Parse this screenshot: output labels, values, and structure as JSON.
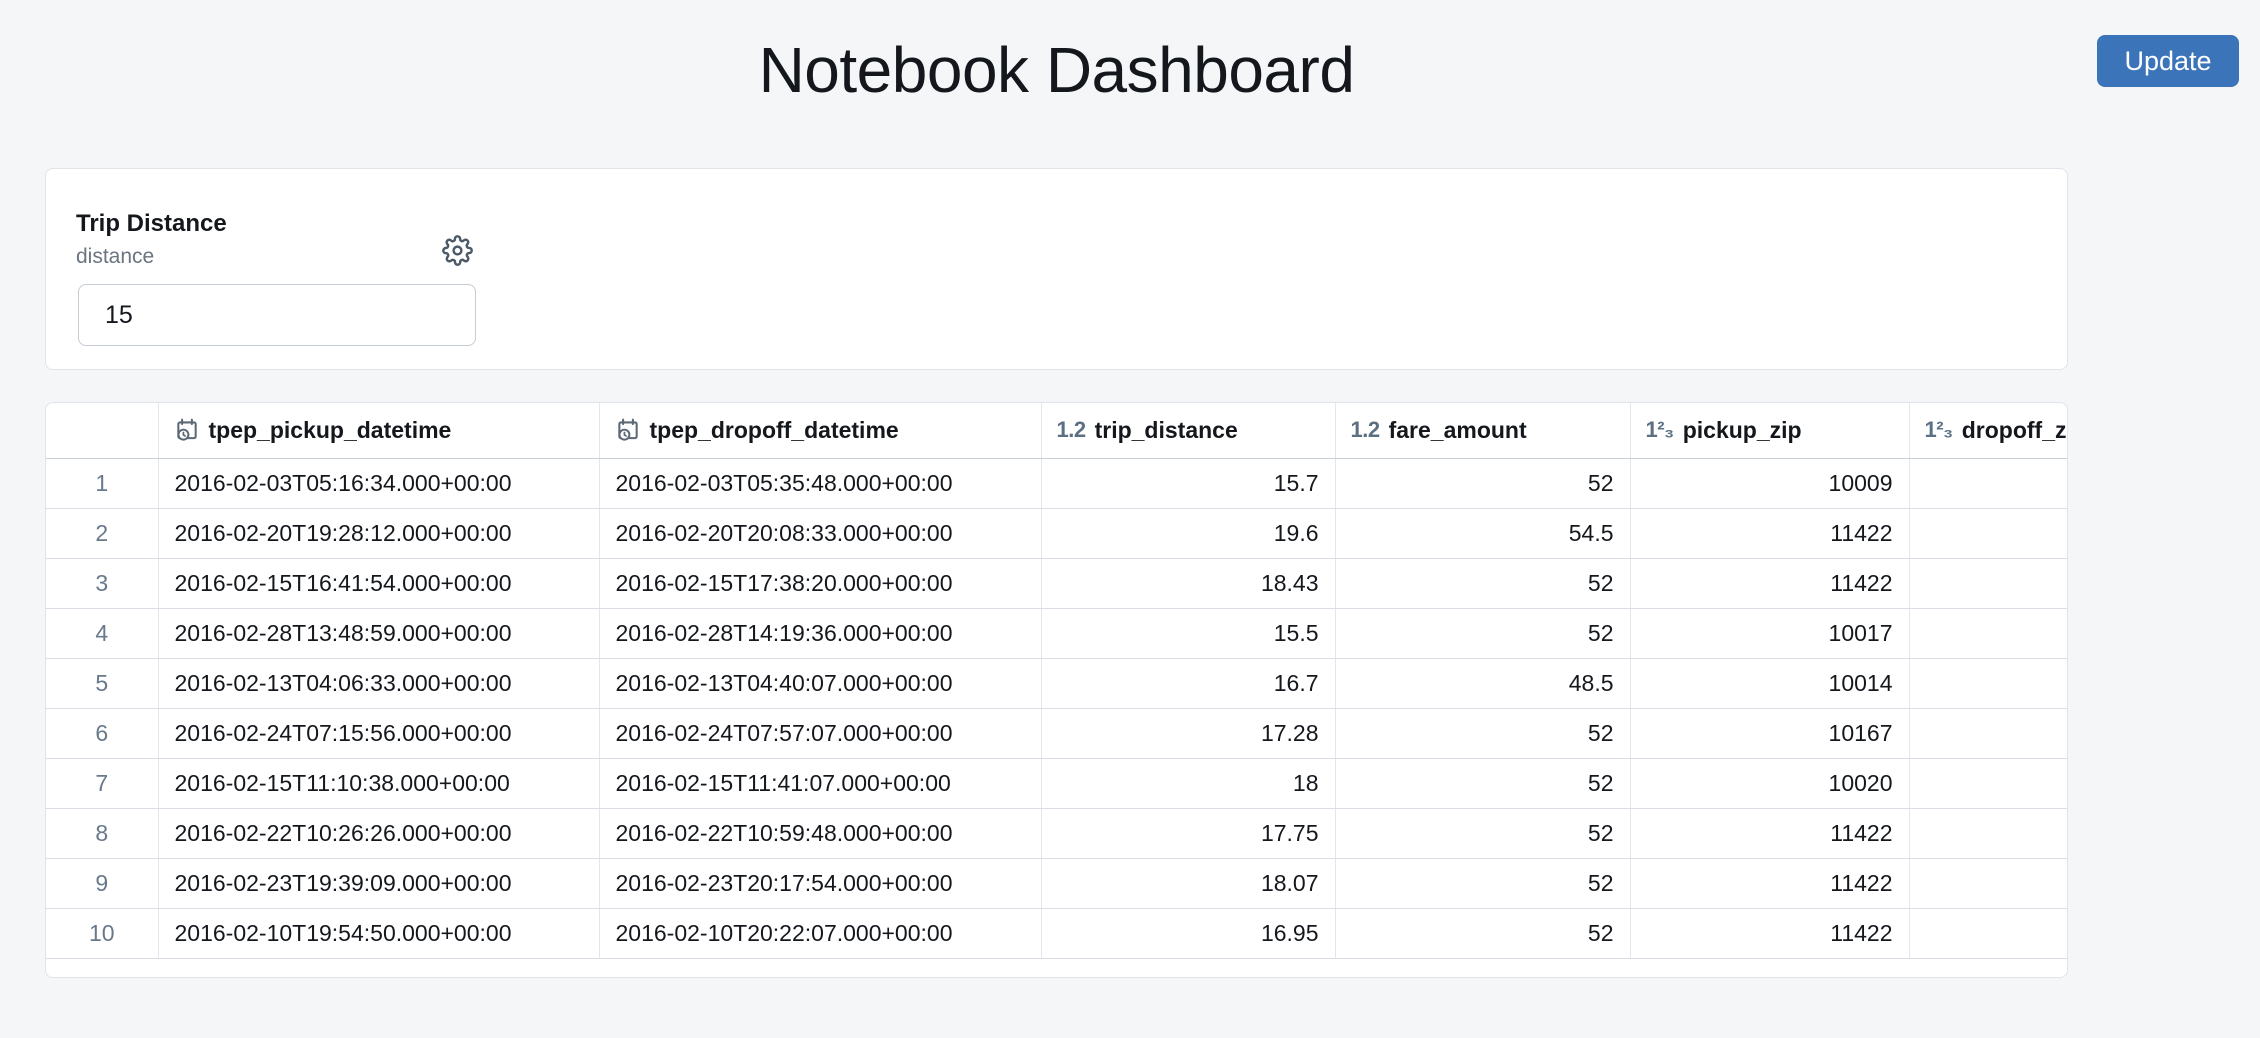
{
  "page": {
    "title": "Notebook Dashboard"
  },
  "header": {
    "update_label": "Update",
    "accent_color": "#3b74b9"
  },
  "widget": {
    "title": "Trip Distance",
    "name": "distance",
    "input_value": "15",
    "gear_icon": "gear-icon"
  },
  "table": {
    "columns": [
      {
        "label": "",
        "type": "row-number",
        "icon": ""
      },
      {
        "label": "tpep_pickup_datetime",
        "type": "datetime",
        "icon": "calendar-clock-icon"
      },
      {
        "label": "tpep_dropoff_datetime",
        "type": "datetime",
        "icon": "calendar-clock-icon"
      },
      {
        "label": "trip_distance",
        "type": "decimal",
        "icon": "decimal-type-icon"
      },
      {
        "label": "fare_amount",
        "type": "decimal",
        "icon": "decimal-type-icon"
      },
      {
        "label": "pickup_zip",
        "type": "integer",
        "icon": "integer-type-icon"
      },
      {
        "label": "dropoff_z",
        "type": "integer",
        "icon": "integer-type-icon"
      }
    ],
    "type_icon_text": {
      "decimal": "1.2",
      "integer": "1²₃"
    },
    "rows": [
      {
        "n": "1",
        "cells": [
          "2016-02-03T05:16:34.000+00:00",
          "2016-02-03T05:35:48.000+00:00",
          "15.7",
          "52",
          "10009",
          ""
        ]
      },
      {
        "n": "2",
        "cells": [
          "2016-02-20T19:28:12.000+00:00",
          "2016-02-20T20:08:33.000+00:00",
          "19.6",
          "54.5",
          "11422",
          ""
        ]
      },
      {
        "n": "3",
        "cells": [
          "2016-02-15T16:41:54.000+00:00",
          "2016-02-15T17:38:20.000+00:00",
          "18.43",
          "52",
          "11422",
          ""
        ]
      },
      {
        "n": "4",
        "cells": [
          "2016-02-28T13:48:59.000+00:00",
          "2016-02-28T14:19:36.000+00:00",
          "15.5",
          "52",
          "10017",
          ""
        ]
      },
      {
        "n": "5",
        "cells": [
          "2016-02-13T04:06:33.000+00:00",
          "2016-02-13T04:40:07.000+00:00",
          "16.7",
          "48.5",
          "10014",
          ""
        ]
      },
      {
        "n": "6",
        "cells": [
          "2016-02-24T07:15:56.000+00:00",
          "2016-02-24T07:57:07.000+00:00",
          "17.28",
          "52",
          "10167",
          ""
        ]
      },
      {
        "n": "7",
        "cells": [
          "2016-02-15T11:10:38.000+00:00",
          "2016-02-15T11:41:07.000+00:00",
          "18",
          "52",
          "10020",
          ""
        ]
      },
      {
        "n": "8",
        "cells": [
          "2016-02-22T10:26:26.000+00:00",
          "2016-02-22T10:59:48.000+00:00",
          "17.75",
          "52",
          "11422",
          ""
        ]
      },
      {
        "n": "9",
        "cells": [
          "2016-02-23T19:39:09.000+00:00",
          "2016-02-23T20:17:54.000+00:00",
          "18.07",
          "52",
          "11422",
          ""
        ]
      },
      {
        "n": "10",
        "cells": [
          "2016-02-10T19:54:50.000+00:00",
          "2016-02-10T20:22:07.000+00:00",
          "16.95",
          "52",
          "11422",
          ""
        ]
      }
    ]
  }
}
